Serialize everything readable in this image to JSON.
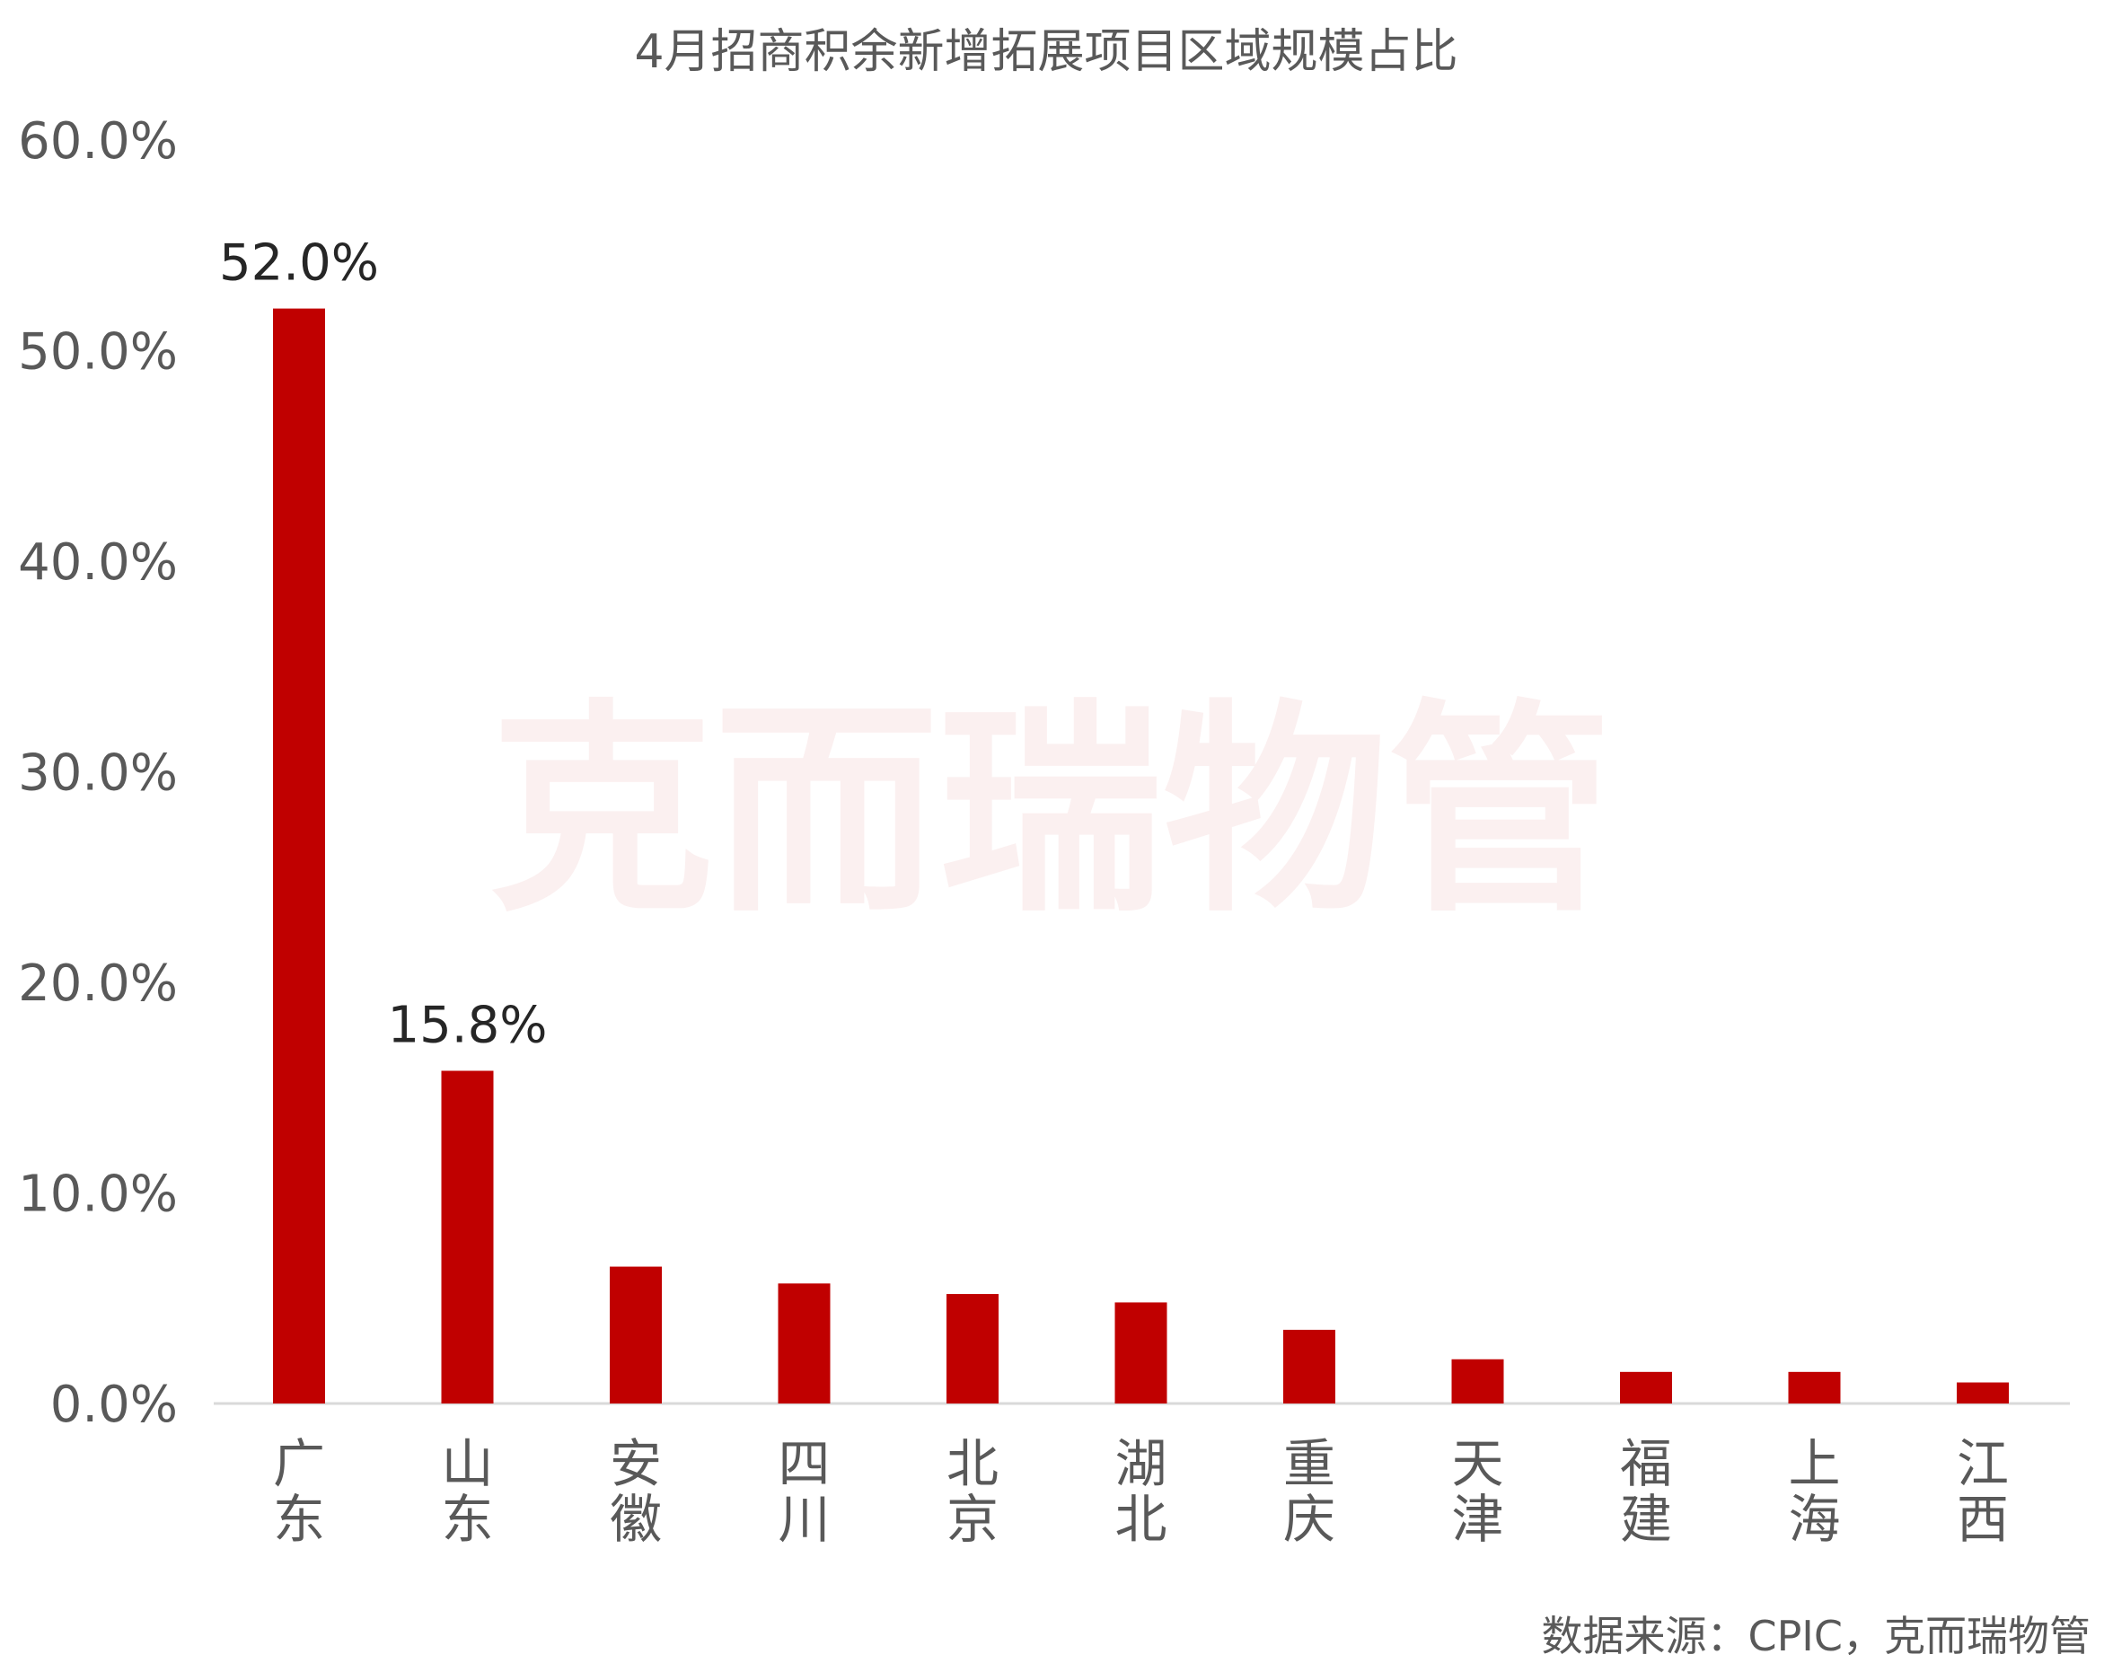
{
  "chart_data": {
    "type": "bar",
    "title": "4月招商积余新增拓展项目区域规模占比",
    "categories": [
      "广东",
      "山东",
      "安徽",
      "四川",
      "北京",
      "湖北",
      "重庆",
      "天津",
      "福建",
      "上海",
      "江西"
    ],
    "values": [
      52.0,
      15.8,
      6.5,
      5.7,
      5.2,
      4.8,
      3.5,
      2.1,
      1.5,
      1.5,
      1.0
    ],
    "data_labels": [
      "52.0%",
      "15.8%",
      "",
      "",
      "",
      "",
      "",
      "",
      "",
      "",
      ""
    ],
    "ylim": [
      0,
      60
    ],
    "y_ticks": [
      "0.0%",
      "10.0%",
      "20.0%",
      "30.0%",
      "40.0%",
      "50.0%",
      "60.0%"
    ],
    "grid": false,
    "bar_color": "#C00000",
    "xlabel": "",
    "ylabel": ""
  },
  "source": "数据来源：CPIC，克而瑞物管",
  "watermark": "克而瑞物管"
}
